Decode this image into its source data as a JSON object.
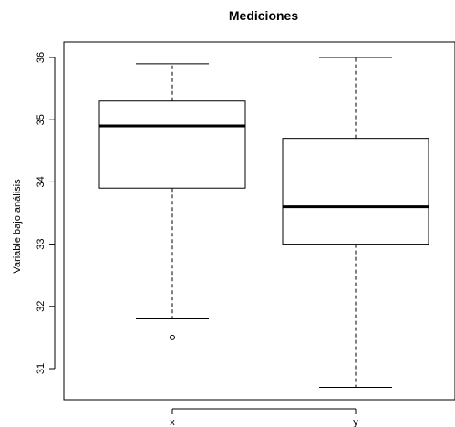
{
  "chart_data": {
    "type": "boxplot",
    "title": "Mediciones",
    "xlabel": "",
    "ylabel": "Variable bajo análisis",
    "ylim": [
      30.5,
      36.2
    ],
    "y_ticks": [
      31,
      32,
      33,
      34,
      35,
      36
    ],
    "y_tick_labels": [
      "31",
      "32",
      "33",
      "34",
      "35",
      "36"
    ],
    "categories": [
      "x",
      "y"
    ],
    "series": [
      {
        "label": "x",
        "whisker_low": 31.8,
        "q1": 33.9,
        "median": 34.9,
        "q3": 35.3,
        "whisker_high": 35.9,
        "outliers": [
          31.5
        ]
      },
      {
        "label": "y",
        "whisker_low": 30.7,
        "q1": 33.0,
        "median": 33.6,
        "q3": 34.7,
        "whisker_high": 36.0,
        "outliers": []
      }
    ],
    "grid": false,
    "colors": {
      "box_stroke": "#000000",
      "box_fill": "#ffffff",
      "median": "#000000",
      "background": "#ffffff"
    }
  }
}
